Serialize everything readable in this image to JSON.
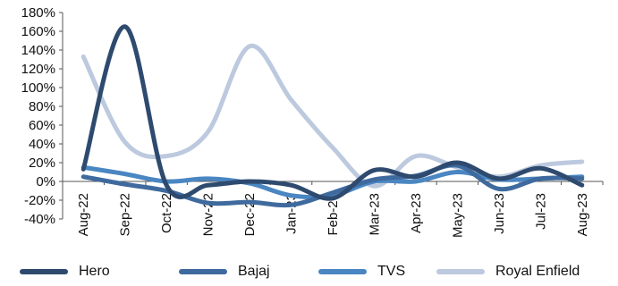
{
  "chart_data": {
    "type": "line",
    "title": "",
    "xlabel": "",
    "ylabel": "",
    "categories": [
      "Aug-22",
      "Sep-22",
      "Oct-22",
      "Nov-22",
      "Dec-22",
      "Jan-23",
      "Feb-23",
      "Mar-23",
      "Apr-23",
      "May-23",
      "Jun-23",
      "Jul-23",
      "Aug-23"
    ],
    "y_tick_labels": [
      "180%",
      "160%",
      "140%",
      "120%",
      "100%",
      "80%",
      "60%",
      "40%",
      "20%",
      "0%",
      "-20%",
      "-40%"
    ],
    "ylim": [
      -40,
      180
    ],
    "y_unit": "%",
    "grid": false,
    "legend_position": "bottom",
    "series": [
      {
        "name": "Hero",
        "color": "#2E4A6E",
        "values": [
          13,
          165,
          -4,
          -4,
          0,
          -4,
          -18,
          12,
          5,
          20,
          3,
          14,
          -4
        ]
      },
      {
        "name": "Bajaj",
        "color": "#3F6A9E",
        "values": [
          5,
          -3,
          -10,
          -23,
          -22,
          -25,
          -12,
          2,
          6,
          17,
          -8,
          3,
          3
        ]
      },
      {
        "name": "TVS",
        "color": "#4A86C2",
        "values": [
          15,
          8,
          0,
          3,
          -2,
          -15,
          -15,
          0,
          0,
          10,
          2,
          3,
          5
        ]
      },
      {
        "name": "Royal Enfield",
        "color": "#BCC9DE",
        "values": [
          133,
          42,
          27,
          53,
          144,
          87,
          36,
          -5,
          27,
          15,
          5,
          17,
          21
        ]
      }
    ]
  }
}
